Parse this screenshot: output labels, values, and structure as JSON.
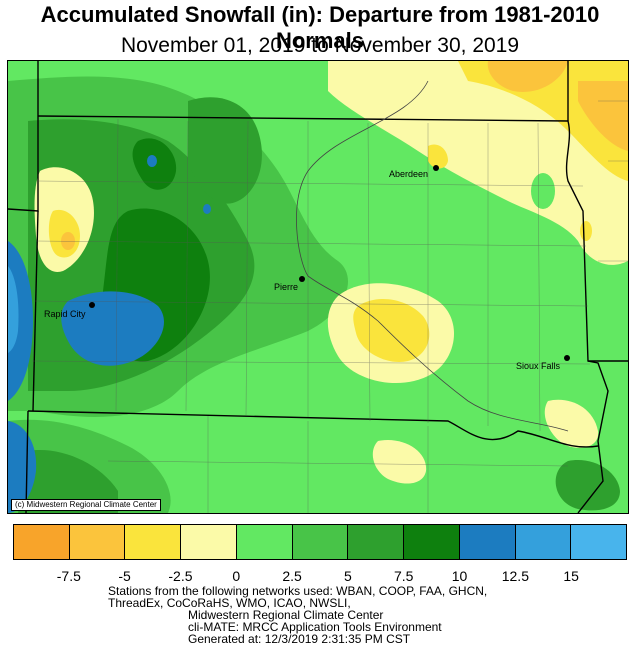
{
  "header": {
    "title": "Accumulated Snowfall (in): Departure from 1981-2010 Normals",
    "subtitle": "November 01, 2019 to November 30, 2019"
  },
  "map": {
    "cities": [
      {
        "name": "Aberdeen"
      },
      {
        "name": "Pierre"
      },
      {
        "name": "Rapid City"
      },
      {
        "name": "Sioux Falls"
      }
    ],
    "credit": "(c) Midwestern Regional Climate Center"
  },
  "legend": {
    "colors": [
      "#f8a42a",
      "#fbc43c",
      "#fae43c",
      "#fbfaa8",
      "#62e862",
      "#48c448",
      "#2ea02e",
      "#0e800e",
      "#1c7cc0",
      "#34a0dc",
      "#48b4ec"
    ],
    "labels": [
      "-7.5",
      "-5",
      "-2.5",
      "0",
      "2.5",
      "5",
      "7.5",
      "10",
      "12.5",
      "15"
    ]
  },
  "footer": {
    "line1": "Stations from the following networks used: WBAN, COOP, FAA, GHCN,",
    "line2": "ThreadEx, CoCoRaHS, WMO, ICAO, NWSLI,",
    "line3": "Midwestern Regional Climate Center",
    "line4": "cli-MATE: MRCC Application Tools Environment",
    "line5": "Generated at: 12/3/2019 2:31:35 PM CST"
  }
}
